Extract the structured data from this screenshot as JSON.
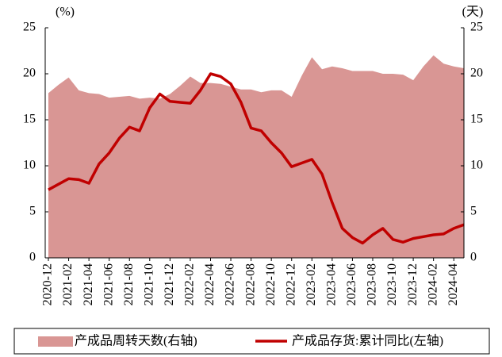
{
  "chart_data": {
    "type": "combo",
    "ylabel": "(%)",
    "y2label": "(天)",
    "categories": [
      "2020-12",
      null,
      "2021-02",
      null,
      "2021-04",
      null,
      "2021-06",
      null,
      "2021-08",
      null,
      "2021-10",
      null,
      "2021-12",
      null,
      "2022-02",
      null,
      "2022-04",
      null,
      "2022-06",
      null,
      "2022-08",
      null,
      "2022-10",
      null,
      "2022-12",
      null,
      "2023-02",
      null,
      "2023-04",
      null,
      "2023-06",
      null,
      "2023-08",
      null,
      "2023-10",
      null,
      "2023-12",
      null,
      "2024-02",
      null,
      "2024-04",
      null
    ],
    "series": [
      {
        "name": "产成品周转天数(右轴)",
        "type": "area",
        "axis": "y2",
        "color": "#d99694",
        "values": [
          17.9,
          18.8,
          19.6,
          18.2,
          17.9,
          17.8,
          17.4,
          17.5,
          17.6,
          17.3,
          17.4,
          17.3,
          17.8,
          18.7,
          19.7,
          19.0,
          19.0,
          18.9,
          18.6,
          18.3,
          18.3,
          18.0,
          18.2,
          18.2,
          17.5,
          19.8,
          21.8,
          20.5,
          20.8,
          20.6,
          20.3,
          20.3,
          20.3,
          20.0,
          20.0,
          19.9,
          19.3,
          20.8,
          22.0,
          21.1,
          20.8,
          20.6
        ]
      },
      {
        "name": "产成品存货:累计同比(左轴)",
        "type": "line",
        "axis": "y",
        "color": "#c00000",
        "values": [
          7.4,
          8.0,
          8.6,
          8.5,
          8.1,
          10.2,
          11.4,
          13.0,
          14.2,
          13.8,
          16.3,
          17.8,
          17.0,
          16.9,
          16.8,
          18.2,
          20.0,
          19.7,
          18.9,
          16.9,
          14.1,
          13.8,
          12.5,
          11.4,
          9.9,
          10.3,
          10.7,
          9.1,
          6.0,
          3.2,
          2.2,
          1.6,
          2.5,
          3.2,
          2.0,
          1.7,
          2.1,
          2.3,
          2.5,
          2.6,
          3.2,
          3.6
        ]
      }
    ],
    "ylim": [
      0,
      25
    ],
    "yticks": [
      0,
      5,
      10,
      15,
      20,
      25
    ],
    "y2lim": [
      0,
      25
    ],
    "y2ticks": [
      0,
      5,
      10,
      15,
      20,
      25
    ],
    "legend": "bottom"
  }
}
